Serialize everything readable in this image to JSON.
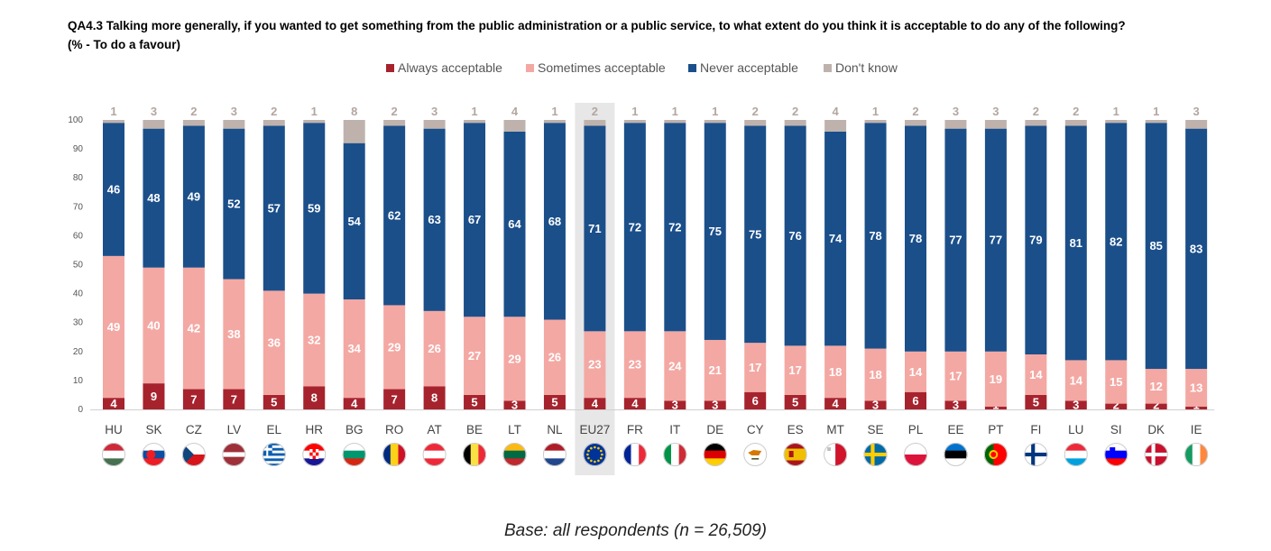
{
  "title": {
    "line1": "QA4.3 Talking more generally, if you wanted to get something from the public administration or a public service, to what extent do you think it is acceptable to do any of the following?",
    "line2": "(%  - To do a favour)"
  },
  "base_note": "Base: all respondents (n = 26,509)",
  "chart_data": {
    "type": "bar",
    "stacked": true,
    "highlight_category": "EU27",
    "categories": [
      "HU",
      "SK",
      "CZ",
      "LV",
      "EL",
      "HR",
      "BG",
      "RO",
      "AT",
      "BE",
      "LT",
      "NL",
      "EU27",
      "FR",
      "IT",
      "DE",
      "CY",
      "ES",
      "MT",
      "SE",
      "PL",
      "EE",
      "PT",
      "FI",
      "LU",
      "SI",
      "DK",
      "IE"
    ],
    "series": [
      {
        "name": "Always acceptable",
        "color": "#a6232d",
        "values": [
          4,
          9,
          7,
          7,
          5,
          8,
          4,
          7,
          8,
          5,
          3,
          5,
          4,
          4,
          3,
          3,
          6,
          5,
          4,
          3,
          6,
          3,
          1,
          5,
          3,
          2,
          2,
          1
        ]
      },
      {
        "name": "Sometimes acceptable",
        "color": "#f4a8a3",
        "values": [
          49,
          40,
          42,
          38,
          36,
          32,
          34,
          29,
          26,
          27,
          29,
          26,
          23,
          23,
          24,
          21,
          17,
          17,
          18,
          18,
          14,
          17,
          19,
          14,
          14,
          15,
          12,
          13
        ]
      },
      {
        "name": "Never acceptable",
        "color": "#1b4f8a",
        "values": [
          46,
          48,
          49,
          52,
          57,
          59,
          54,
          62,
          63,
          67,
          64,
          68,
          71,
          72,
          72,
          75,
          75,
          76,
          74,
          78,
          78,
          77,
          77,
          79,
          81,
          82,
          85,
          83
        ]
      },
      {
        "name": "Don't know",
        "color": "#bfb2ad",
        "values": [
          1,
          3,
          2,
          3,
          2,
          1,
          8,
          2,
          3,
          1,
          4,
          1,
          2,
          1,
          1,
          1,
          2,
          2,
          4,
          1,
          2,
          3,
          3,
          2,
          2,
          1,
          1,
          3
        ]
      }
    ],
    "ylim": [
      0,
      100
    ],
    "yticks": [
      0,
      10,
      20,
      30,
      40,
      50,
      60,
      70,
      80,
      90,
      100
    ],
    "xlabel": "",
    "ylabel": "",
    "legend_position": "top-center",
    "flags": [
      "hu",
      "sk",
      "cz",
      "lv",
      "el",
      "hr",
      "bg",
      "ro",
      "at",
      "be",
      "lt",
      "nl",
      "eu",
      "fr",
      "it",
      "de",
      "cy",
      "es",
      "mt",
      "se",
      "pl",
      "ee",
      "pt",
      "fi",
      "lu",
      "si",
      "dk",
      "ie"
    ]
  }
}
